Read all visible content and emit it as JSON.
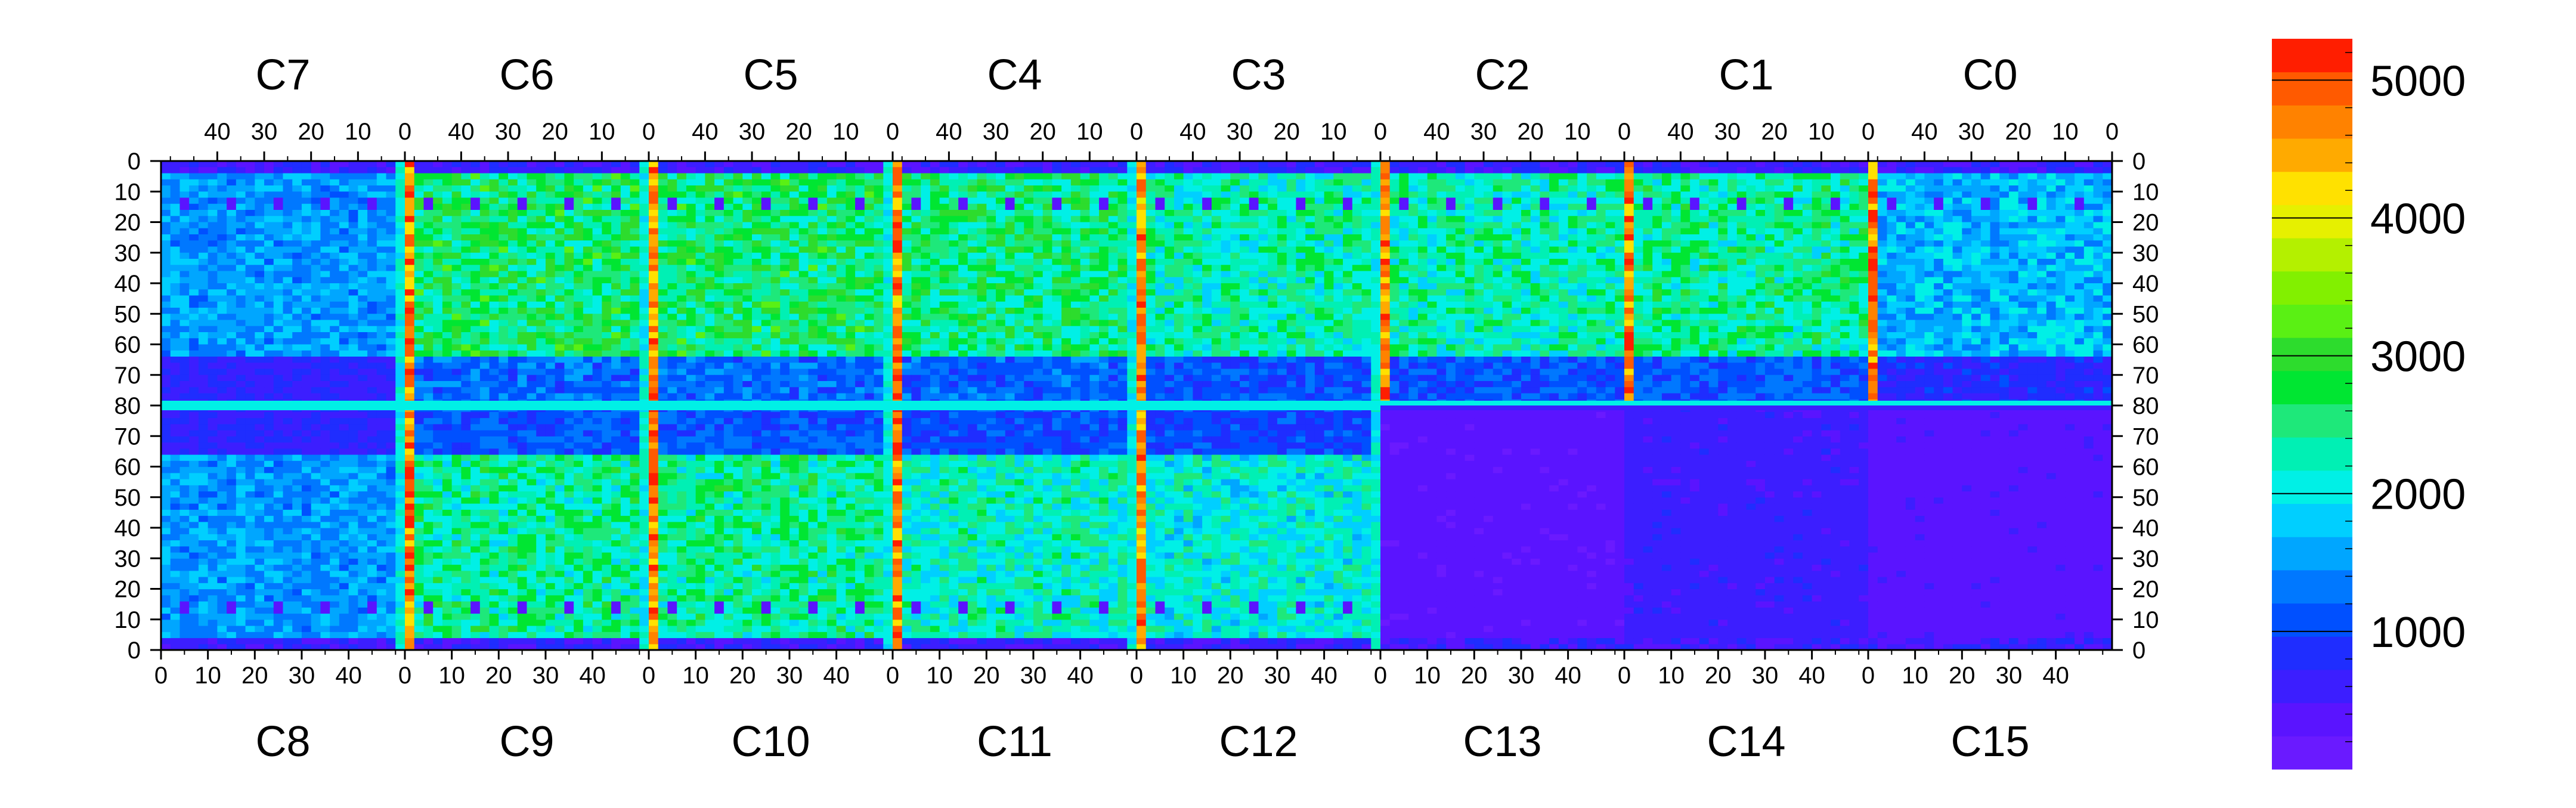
{
  "chart_data": {
    "type": "heatmap",
    "title": "",
    "xlabel": "",
    "ylabel": "",
    "top_chips": [
      "C7",
      "C6",
      "C5",
      "C4",
      "C3",
      "C2",
      "C1",
      "C0"
    ],
    "bottom_chips": [
      "C8",
      "C9",
      "C10",
      "C11",
      "C12",
      "C13",
      "C14",
      "C15"
    ],
    "top_x_tick_labels": [
      "40",
      "30",
      "20",
      "10",
      "0"
    ],
    "bottom_x_tick_labels": [
      "0",
      "10",
      "20",
      "30",
      "40"
    ],
    "y_tick_labels_top_half": [
      "0",
      "10",
      "20",
      "30",
      "40",
      "50",
      "60",
      "70",
      "80"
    ],
    "y_tick_labels_bottom_half": [
      "70",
      "60",
      "50",
      "40",
      "30",
      "20",
      "10",
      "0"
    ],
    "chip_columns": 52,
    "chip_rows": 80,
    "colorbar": {
      "min": 0,
      "max": 5300,
      "tick_values": [
        1000,
        2000,
        3000,
        4000,
        5000
      ],
      "tick_labels": [
        "1000",
        "2000",
        "3000",
        "4000",
        "5000"
      ],
      "colors": [
        "#6a1aff",
        "#5a14ff",
        "#3c1eff",
        "#1f2dff",
        "#0050ff",
        "#0078ff",
        "#00a6ff",
        "#00cfff",
        "#00f0e6",
        "#00f0b4",
        "#1ee87a",
        "#00e632",
        "#2ddc2d",
        "#5af014",
        "#82f000",
        "#b4f000",
        "#e6f000",
        "#ffe100",
        "#ffaa00",
        "#ff8200",
        "#ff5a00",
        "#ff1e00"
      ]
    },
    "description_values": {
      "chip_values_approx": {
        "C7": 1500,
        "C6": 2600,
        "C5": 2600,
        "C4": 2500,
        "C3": 2300,
        "C2": 2300,
        "C1": 2400,
        "C0": 1700,
        "C8": 1500,
        "C9": 2400,
        "C10": 2400,
        "C11": 2200,
        "C12": 2100,
        "C13": 300,
        "C14": 600,
        "C15": 400
      },
      "edge_column_value_approx": 4800,
      "bond_pad_value_approx": 300
    }
  }
}
